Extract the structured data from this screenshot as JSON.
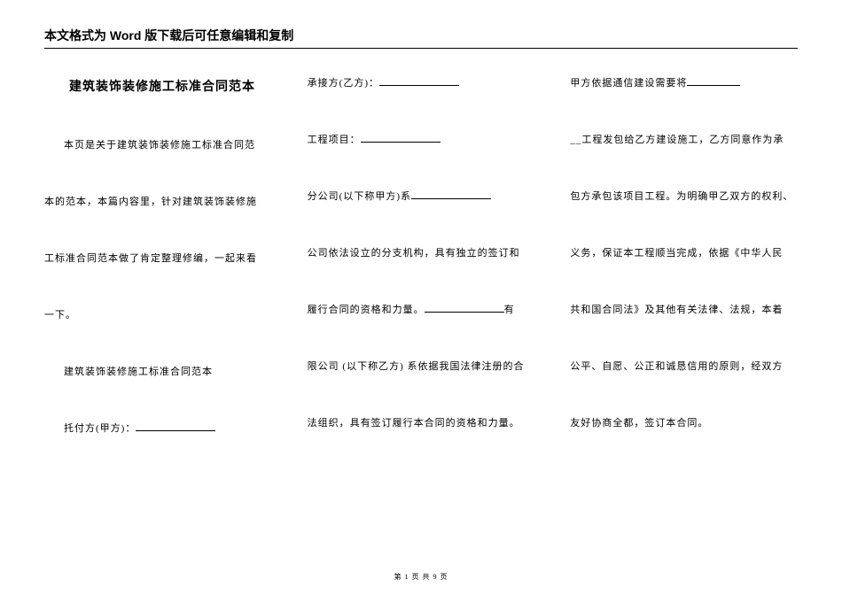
{
  "header_note": "本文格式为 Word 版下载后可任意编辑和复制",
  "col1": {
    "title": "建筑装饰装修施工标准合同范本",
    "p1": "本页是关于建筑装饰装修施工标准合同范",
    "p2": "本的范本，本篇内容里，针对建筑装饰装修施",
    "p3": "工标准合同范本做了肯定整理修编，一起来看",
    "p4": "一下。",
    "p5": "建筑装饰装修施工标准合同范本",
    "p6_pre": "托付方(甲方)："
  },
  "col2": {
    "p1_pre": "承接方(乙方)：",
    "p2_pre": "工程项目：",
    "p3_pre": "分公司(以下称甲方)系",
    "p4_pre": "公司依法设立的分支机构，具有独立的签订和",
    "p5_pre": "履行合同的资格和力量。",
    "p5_post": "有",
    "p6": "限公司 (以下称乙方) 系依据我国法律注册的合",
    "p7": "法组织，具有签订履行本合同的资格和力量。"
  },
  "col3": {
    "p1_pre": "甲方依据通信建设需要将",
    "p2_pre": "__工程发包给乙方建设施工，乙方同意作为承",
    "p3": "包方承包该项目工程。为明确甲乙双方的权利、",
    "p4": "义务，保证本工程顺当完成，依据《中华人民",
    "p5": "共和国合同法》及其他有关法律、法规，本着",
    "p6": "公平、自愿、公正和诚恳信用的原则，经双方",
    "p7": "友好协商全都，签订本合同。"
  },
  "footer": {
    "prefix": "第 ",
    "page": "1",
    "mid": " 页 共 ",
    "total": "9",
    "suffix": " 页"
  }
}
